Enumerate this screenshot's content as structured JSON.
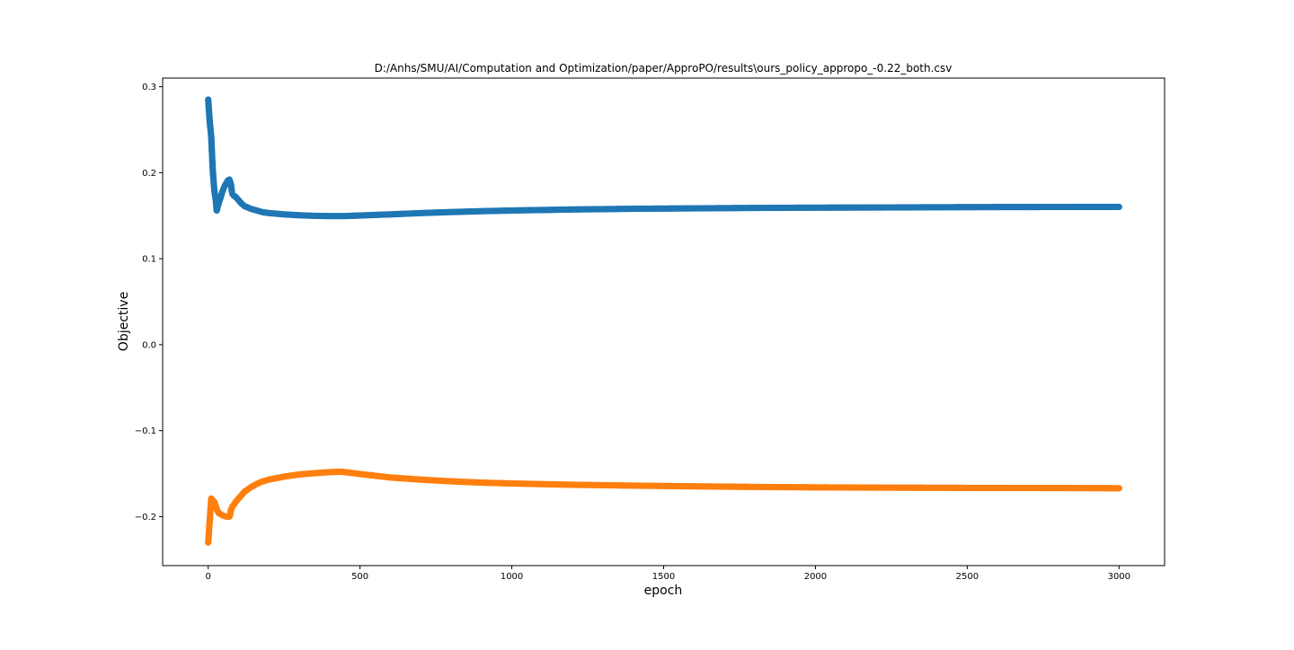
{
  "chart_data": {
    "type": "line",
    "title": "D:/Anhs/SMU/AI/Computation and Optimization/paper/ApproPO/results\\ours_policy_appropo_-0.22_both.csv",
    "xlabel": "epoch",
    "ylabel": "Objective",
    "xlim": [
      -150,
      3150
    ],
    "ylim": [
      -0.257,
      0.31
    ],
    "xticks": [
      0,
      500,
      1000,
      1500,
      2000,
      2500,
      3000
    ],
    "xtick_labels": [
      "0",
      "500",
      "1000",
      "1500",
      "2000",
      "2500",
      "3000"
    ],
    "yticks": [
      -0.2,
      -0.1,
      0.0,
      0.1,
      0.2,
      0.3
    ],
    "ytick_labels": [
      "−0.2",
      "−0.1",
      "0.0",
      "0.1",
      "0.2",
      "0.3"
    ],
    "grid": false,
    "legend": "none",
    "marker": "circle",
    "series": [
      {
        "color": "#1f77b4",
        "x": [
          0,
          5,
          10,
          15,
          20,
          25,
          28,
          30,
          32,
          35,
          40,
          45,
          50,
          55,
          60,
          65,
          70,
          72,
          75,
          78,
          80,
          85,
          90,
          100,
          110,
          120,
          140,
          160,
          180,
          200,
          250,
          300,
          350,
          400,
          450,
          500,
          600,
          700,
          800,
          900,
          1000,
          1200,
          1400,
          1600,
          1800,
          2000,
          2200,
          2400,
          2600,
          2800,
          3000
        ],
        "y": [
          0.285,
          0.26,
          0.242,
          0.203,
          0.18,
          0.168,
          0.156,
          0.158,
          0.161,
          0.165,
          0.17,
          0.176,
          0.181,
          0.185,
          0.188,
          0.191,
          0.192,
          0.19,
          0.186,
          0.178,
          0.175,
          0.173,
          0.172,
          0.168,
          0.164,
          0.161,
          0.158,
          0.156,
          0.154,
          0.153,
          0.1515,
          0.1505,
          0.1498,
          0.1495,
          0.1495,
          0.1502,
          0.1515,
          0.153,
          0.1542,
          0.1552,
          0.156,
          0.1572,
          0.158,
          0.1585,
          0.159,
          0.1593,
          0.1595,
          0.1598,
          0.16,
          0.1601,
          0.1602
        ]
      },
      {
        "color": "#ff7f0e",
        "x": [
          0,
          5,
          10,
          20,
          25,
          30,
          35,
          40,
          45,
          50,
          55,
          60,
          65,
          70,
          72,
          75,
          78,
          80,
          85,
          90,
          100,
          110,
          120,
          140,
          160,
          180,
          200,
          250,
          300,
          350,
          400,
          440,
          500,
          600,
          700,
          800,
          900,
          1000,
          1200,
          1400,
          1600,
          1800,
          2000,
          2200,
          2400,
          2600,
          2800,
          3000
        ],
        "y": [
          -0.23,
          -0.205,
          -0.179,
          -0.183,
          -0.188,
          -0.193,
          -0.196,
          -0.197,
          -0.198,
          -0.199,
          -0.1995,
          -0.2,
          -0.2,
          -0.2,
          -0.198,
          -0.192,
          -0.19,
          -0.188,
          -0.186,
          -0.183,
          -0.179,
          -0.175,
          -0.171,
          -0.166,
          -0.162,
          -0.159,
          -0.157,
          -0.1535,
          -0.151,
          -0.1495,
          -0.1483,
          -0.1478,
          -0.1505,
          -0.1545,
          -0.157,
          -0.159,
          -0.1605,
          -0.1615,
          -0.163,
          -0.164,
          -0.1648,
          -0.1655,
          -0.166,
          -0.1663,
          -0.1665,
          -0.1667,
          -0.1668,
          -0.167
        ]
      }
    ]
  }
}
